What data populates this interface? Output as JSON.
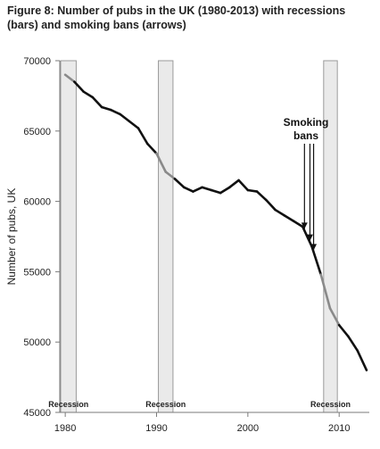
{
  "title": "Figure 8: Number of pubs in the UK (1980-2013) with recessions (bars) and smoking bans (arrows)",
  "chart_data": {
    "type": "line",
    "title": "Figure 8: Number of pubs in the UK (1980-2013) with recessions (bars) and smoking bans (arrows)",
    "xlabel": "",
    "ylabel": "Number of pubs, UK",
    "xlim": [
      1979.4,
      2013.3
    ],
    "ylim": [
      45000,
      70000
    ],
    "x_ticks": [
      1980,
      1990,
      2000,
      2010
    ],
    "y_ticks": [
      45000,
      50000,
      55000,
      60000,
      65000,
      70000
    ],
    "grid": false,
    "series": [
      {
        "x": [
          1980,
          1981,
          1982,
          1983,
          1984,
          1985,
          1986,
          1987,
          1988,
          1989,
          1990,
          1991,
          1992,
          1993,
          1994,
          1995,
          1996,
          1997,
          1998,
          1999,
          2000,
          2001,
          2002,
          2003,
          2004,
          2005,
          2006,
          2007,
          2008,
          2009,
          2010,
          2011,
          2012,
          2013
        ],
        "values": [
          69000,
          68500,
          67800,
          67400,
          66700,
          66500,
          66200,
          65700,
          65200,
          64100,
          63400,
          62100,
          61600,
          61000,
          60700,
          61000,
          60800,
          60600,
          61000,
          61500,
          60800,
          60700,
          60100,
          59400,
          59000,
          58600,
          58200,
          56800,
          54800,
          52400,
          51200,
          50400,
          49400,
          48000
        ]
      }
    ],
    "recessions": [
      {
        "start": 1979.5,
        "end": 1981.2,
        "label": "Recession"
      },
      {
        "start": 1990.2,
        "end": 1991.8,
        "label": "Recession"
      },
      {
        "start": 2008.3,
        "end": 2009.8,
        "label": "Recession"
      }
    ],
    "annotations": [
      {
        "text_lines": [
          "Smoking",
          "bans"
        ],
        "arrows_x": [
          2006.2,
          2006.8,
          2007.2
        ]
      }
    ],
    "colors": {
      "line": "#111111",
      "line_in_recession": "#8a8a8a",
      "recession_fill": "#eaeaea",
      "recession_stroke": "#9a9a9a",
      "axis": "#7a7a7a"
    }
  }
}
